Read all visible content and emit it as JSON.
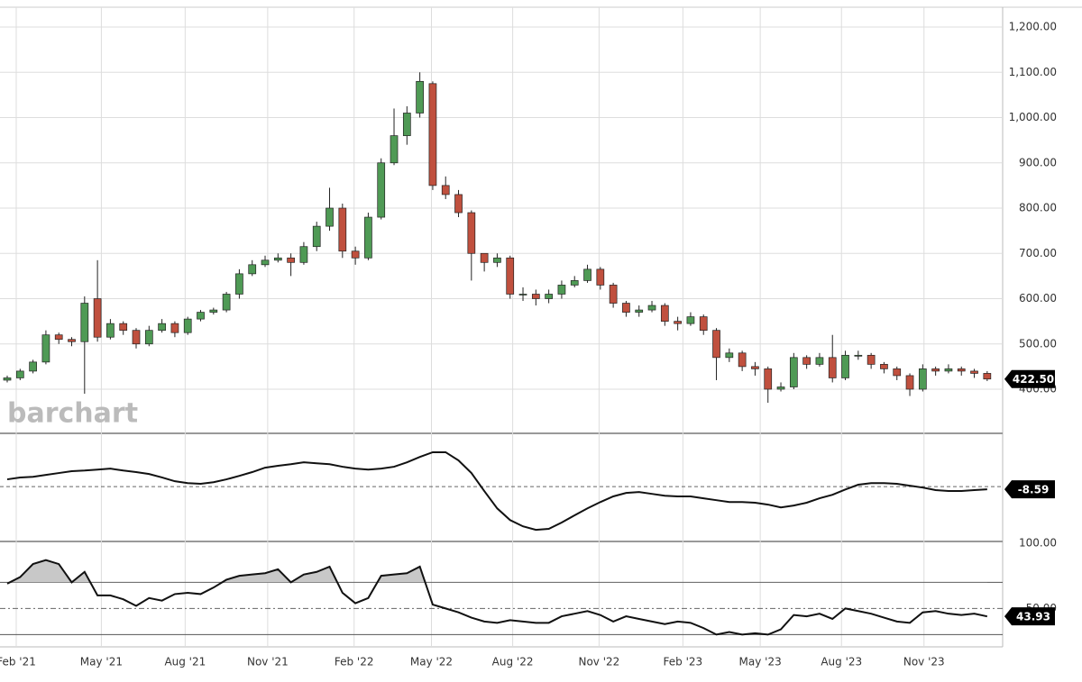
{
  "chart_data": [
    {
      "type": "candlestick",
      "watermark": "barchart",
      "up_color": "#4f9a55",
      "down_color": "#c0503e",
      "open": [
        420,
        425,
        440,
        460,
        520,
        510,
        505,
        600,
        515,
        545,
        530,
        500,
        530,
        545,
        525,
        555,
        570,
        575,
        610,
        655,
        675,
        685,
        690,
        680,
        715,
        760,
        800,
        705,
        690,
        780,
        900,
        960,
        1010,
        1075,
        850,
        830,
        790,
        700,
        680,
        690,
        610,
        610,
        600,
        610,
        630,
        640,
        665,
        630,
        590,
        570,
        575,
        585,
        550,
        545,
        560,
        530,
        470,
        480,
        450,
        445,
        400,
        405,
        470,
        455,
        470,
        425,
        475,
        475,
        455,
        445,
        430,
        400,
        445,
        440,
        445,
        440,
        435
      ],
      "high": [
        430,
        445,
        465,
        530,
        525,
        515,
        605,
        685,
        555,
        550,
        535,
        540,
        555,
        550,
        560,
        575,
        580,
        615,
        665,
        685,
        695,
        700,
        700,
        725,
        770,
        845,
        810,
        715,
        790,
        910,
        1020,
        1025,
        1100,
        1080,
        870,
        840,
        795,
        700,
        700,
        695,
        625,
        620,
        620,
        640,
        650,
        675,
        670,
        635,
        595,
        585,
        595,
        590,
        560,
        570,
        565,
        535,
        490,
        485,
        460,
        450,
        415,
        480,
        475,
        480,
        520,
        485,
        485,
        480,
        460,
        450,
        435,
        455,
        450,
        455,
        450,
        445,
        440
      ],
      "low": [
        415,
        420,
        435,
        455,
        500,
        495,
        390,
        505,
        510,
        520,
        490,
        495,
        525,
        515,
        520,
        550,
        565,
        570,
        600,
        650,
        670,
        680,
        650,
        675,
        705,
        750,
        690,
        675,
        685,
        775,
        895,
        940,
        1000,
        840,
        820,
        780,
        640,
        660,
        670,
        600,
        595,
        585,
        590,
        600,
        625,
        635,
        620,
        580,
        560,
        560,
        570,
        540,
        530,
        540,
        520,
        420,
        460,
        440,
        430,
        370,
        395,
        400,
        445,
        450,
        415,
        420,
        465,
        445,
        435,
        420,
        385,
        395,
        430,
        435,
        430,
        425,
        418
      ],
      "close": [
        425,
        440,
        460,
        520,
        510,
        505,
        590,
        515,
        545,
        530,
        500,
        530,
        545,
        525,
        555,
        570,
        575,
        610,
        655,
        675,
        685,
        690,
        680,
        715,
        760,
        800,
        705,
        690,
        780,
        900,
        960,
        1010,
        1080,
        850,
        830,
        790,
        700,
        680,
        690,
        610,
        610,
        600,
        610,
        630,
        640,
        665,
        630,
        590,
        570,
        575,
        585,
        550,
        545,
        560,
        530,
        470,
        480,
        450,
        445,
        400,
        405,
        470,
        455,
        470,
        425,
        475,
        475,
        455,
        445,
        430,
        400,
        445,
        440,
        445,
        440,
        435,
        422.5
      ],
      "last_label": "422.50",
      "ylim": [
        304.5,
        1243.8
      ],
      "yticks": [
        {
          "value": 400,
          "label": "400.00"
        },
        {
          "value": 500,
          "label": "500.00"
        },
        {
          "value": 600,
          "label": "600.00"
        },
        {
          "value": 700,
          "label": "700.00"
        },
        {
          "value": 800,
          "label": "800.00"
        },
        {
          "value": 900,
          "label": "900.00"
        },
        {
          "value": 1000,
          "label": "1,000.00"
        },
        {
          "value": 1100,
          "label": "1,100.00"
        },
        {
          "value": 1200,
          "label": "1,200.00"
        }
      ],
      "xlim": [
        -0.56,
        77.2
      ],
      "xticks": [
        {
          "value": 0.7,
          "label": "Feb '21"
        },
        {
          "value": 7.3,
          "label": "May '21"
        },
        {
          "value": 13.8,
          "label": "Aug '21"
        },
        {
          "value": 20.2,
          "label": "Nov '21"
        },
        {
          "value": 26.9,
          "label": "Feb '22"
        },
        {
          "value": 32.9,
          "label": "May '22"
        },
        {
          "value": 39.2,
          "label": "Aug '22"
        },
        {
          "value": 45.9,
          "label": "Nov '22"
        },
        {
          "value": 52.4,
          "label": "Feb '23"
        },
        {
          "value": 58.4,
          "label": "May '23"
        },
        {
          "value": 64.7,
          "label": "Aug '23"
        },
        {
          "value": 71.1,
          "label": "Nov '23"
        }
      ],
      "grid": true
    },
    {
      "type": "line",
      "color": "#111111",
      "values": [
        23,
        29,
        31,
        37,
        43,
        49,
        51,
        54,
        57,
        51,
        46,
        40,
        29,
        17,
        11,
        9,
        14,
        23,
        34,
        46,
        60,
        66,
        71,
        77,
        74,
        71,
        63,
        57,
        54,
        57,
        63,
        77,
        94,
        109,
        109,
        83,
        43,
        -14,
        -69,
        -106,
        -126,
        -137,
        -134,
        -114,
        -91,
        -69,
        -49,
        -31,
        -20,
        -17,
        -23,
        -29,
        -31,
        -31,
        -37,
        -43,
        -49,
        -49,
        -51,
        -57,
        -66,
        -60,
        -51,
        -37,
        -26,
        -9,
        6,
        11,
        11,
        9,
        3,
        -3,
        -11,
        -14,
        -14,
        -11,
        -8.59
      ],
      "last_label": "-8.59",
      "ylim": [
        -171,
        166
      ],
      "levels": [
        0
      ]
    },
    {
      "type": "line",
      "color": "#111111",
      "shade_color": "#c8c8c8",
      "values": [
        69,
        74,
        84,
        87,
        84,
        70,
        78,
        60,
        60,
        57,
        52,
        58,
        56,
        61,
        62,
        61,
        66,
        72,
        75,
        76,
        77,
        80,
        70,
        76,
        78,
        82,
        62,
        54,
        58,
        75,
        76,
        77,
        82,
        53,
        50,
        47,
        43,
        40,
        39,
        41,
        40,
        39,
        39,
        44,
        46,
        48,
        45,
        40,
        44,
        42,
        40,
        38,
        40,
        39,
        35,
        30,
        32,
        30,
        31,
        30,
        34,
        45,
        44,
        46,
        42,
        50,
        48,
        46,
        43,
        40,
        39,
        47,
        48,
        46,
        45,
        46,
        43.93
      ],
      "last_label": "43.93",
      "ylim": [
        20.6,
        100.6
      ],
      "yticks": [
        {
          "value": 50,
          "label": "50.00"
        },
        {
          "value": 100,
          "label": "100.00"
        }
      ],
      "levels": [
        70,
        50,
        30
      ],
      "shade_above": 70
    }
  ]
}
